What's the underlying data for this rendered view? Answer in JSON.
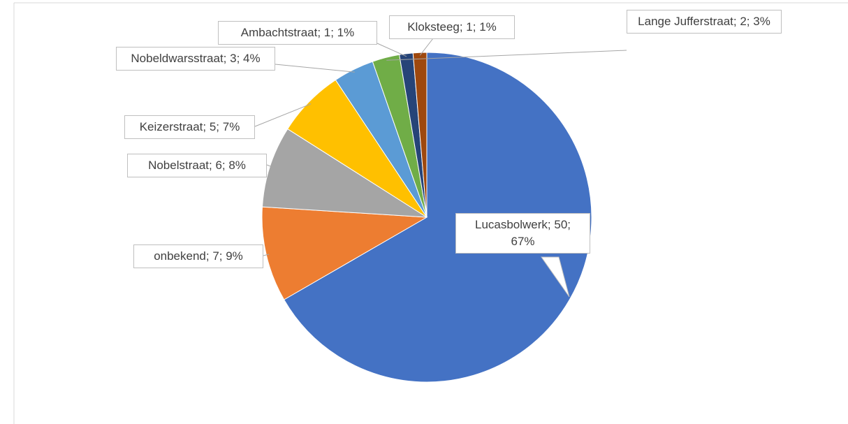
{
  "chart_data": {
    "type": "pie",
    "values": [
      50,
      7,
      6,
      5,
      3,
      2,
      1,
      1
    ],
    "value_labels": [
      "Lucasbolwerk; 50; 67%",
      "onbekend; 7; 9%",
      "Nobelstraat; 6; 8%",
      "Keizerstraat; 5; 7%",
      "Nobeldwarsstraat; 3; 4%",
      "Lange Jufferstraat; 2; 3%",
      "Ambachtstraat; 1; 1%",
      "Kloksteeg; 1; 1%"
    ],
    "colors": [
      "#4472c4",
      "#ed7d31",
      "#a5a5a5",
      "#ffc000",
      "#5b9bd5",
      "#70ad47",
      "#264478",
      "#9e480e"
    ]
  }
}
